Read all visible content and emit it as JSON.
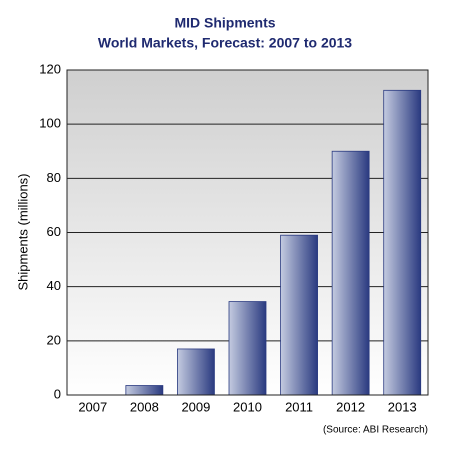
{
  "chart_data": {
    "type": "bar",
    "title": "MID Shipments",
    "subtitle": "World Markets, Forecast: 2007 to 2013",
    "y_label": "Shipments (millions)",
    "source": "(Source: ABI Research)",
    "categories": [
      "2007",
      "2008",
      "2009",
      "2010",
      "2011",
      "2012",
      "2013"
    ],
    "values": [
      0,
      3.5,
      17,
      34.5,
      59,
      90,
      112.5
    ],
    "color": "#2a3a80",
    "ylim": [
      0,
      120
    ],
    "yticks": [
      0,
      20,
      40,
      60,
      80,
      100,
      120
    ],
    "grid": true
  }
}
